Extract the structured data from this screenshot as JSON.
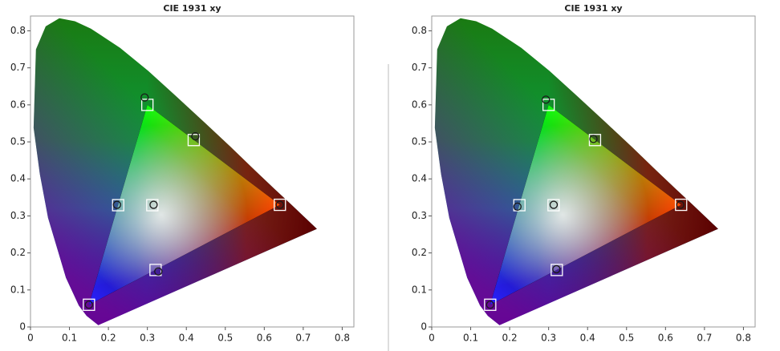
{
  "chart_data": [
    {
      "type": "scatter",
      "title": "CIE 1931 xy",
      "xlim": [
        0,
        0.83
      ],
      "ylim": [
        0,
        0.84
      ],
      "xticks": [
        0,
        0.1,
        0.2,
        0.3,
        0.4,
        0.5,
        0.6,
        0.7,
        0.8
      ],
      "yticks": [
        0,
        0.1,
        0.2,
        0.3,
        0.4,
        0.5,
        0.6,
        0.7,
        0.8
      ],
      "series": [
        {
          "marker": "square",
          "color": "#ffffff",
          "x": [
            0.64,
            0.3,
            0.15,
            0.3127,
            0.225,
            0.321,
            0.419
          ],
          "y": [
            0.33,
            0.6,
            0.06,
            0.329,
            0.329,
            0.154,
            0.505
          ]
        },
        {
          "marker": "circle",
          "color": "#1a1a1a",
          "x": [
            0.64,
            0.293,
            0.15,
            0.316,
            0.222,
            0.328,
            0.423
          ],
          "y": [
            0.33,
            0.62,
            0.06,
            0.33,
            0.33,
            0.15,
            0.515
          ]
        }
      ]
    },
    {
      "type": "scatter",
      "title": "CIE 1931 xy",
      "xlim": [
        0,
        0.83
      ],
      "ylim": [
        0,
        0.84
      ],
      "xticks": [
        0,
        0.1,
        0.2,
        0.3,
        0.4,
        0.5,
        0.6,
        0.7,
        0.8
      ],
      "yticks": [
        0,
        0.1,
        0.2,
        0.3,
        0.4,
        0.5,
        0.6,
        0.7,
        0.8
      ],
      "series": [
        {
          "marker": "square",
          "color": "#ffffff",
          "x": [
            0.64,
            0.3,
            0.15,
            0.3127,
            0.225,
            0.321,
            0.419
          ],
          "y": [
            0.33,
            0.6,
            0.06,
            0.329,
            0.329,
            0.154,
            0.505
          ]
        },
        {
          "marker": "circle",
          "color": "#1a1a1a",
          "x": [
            0.638,
            0.293,
            0.15,
            0.313,
            0.22,
            0.32,
            0.415
          ],
          "y": [
            0.33,
            0.614,
            0.06,
            0.33,
            0.325,
            0.156,
            0.508
          ]
        }
      ]
    }
  ]
}
